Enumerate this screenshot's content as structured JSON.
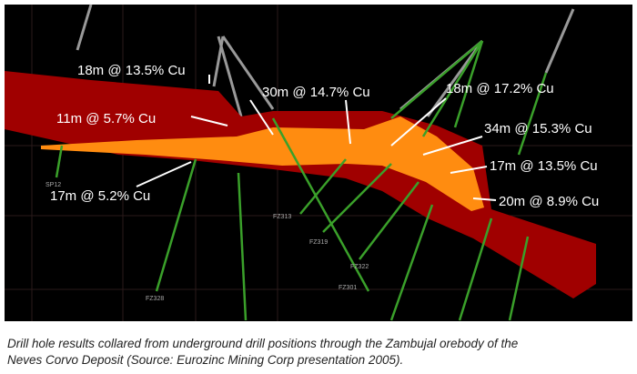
{
  "diagram": {
    "annotations": [
      "18m @ 13.5% Cu",
      "30m @ 14.7% Cu",
      "18m @ 17.2% Cu",
      "11m @ 5.7% Cu",
      "34m @ 15.3% Cu",
      "17m @ 13.5% Cu",
      "17m @ 5.2% Cu",
      "20m @ 8.9% Cu"
    ],
    "drill_holes": [
      "SP12",
      "FZ328",
      "FZ313",
      "FZ319",
      "FZ322",
      "FZ301"
    ]
  },
  "caption": [
    "Drill hole results collared from underground drill positions through the Zambujal orebody of the",
    "Neves Corvo Deposit (Source: Eurozinc Mining Corp presentation 2005)."
  ]
}
